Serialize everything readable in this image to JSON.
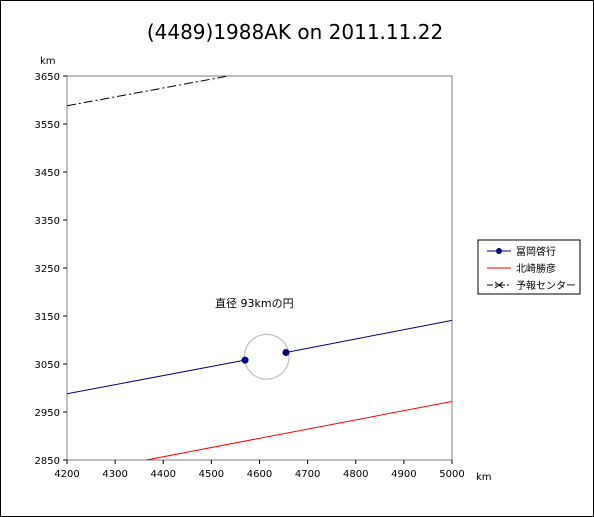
{
  "chart_data": {
    "type": "line",
    "title": "(4489)1988AK on 2011.11.22",
    "xlabel": "km",
    "ylabel": "km",
    "xlim": [
      4200,
      5000
    ],
    "ylim": [
      2850,
      3650
    ],
    "x_ticks": [
      4200,
      4300,
      4400,
      4500,
      4600,
      4700,
      4800,
      4900,
      5000
    ],
    "y_ticks": [
      2850,
      2950,
      3050,
      3150,
      3250,
      3350,
      3450,
      3550,
      3650
    ],
    "grid": false,
    "legend_position": "right",
    "series": [
      {
        "name": "冨岡啓行",
        "color": "#000080",
        "line_style": "solid",
        "marker": "circle",
        "segments": [
          [
            [
              4200,
              2988
            ],
            [
              4570,
              3058
            ]
          ],
          [
            [
              4655,
              3074
            ],
            [
              5000,
              3141
            ]
          ]
        ],
        "marker_points": [
          [
            4570,
            3058
          ],
          [
            4655,
            3074
          ]
        ]
      },
      {
        "name": "北崎勝彦",
        "color": "#ff0000",
        "line_style": "solid",
        "marker": "none",
        "segments": [
          [
            [
              4365,
              2850
            ],
            [
              5000,
              2972
            ]
          ]
        ]
      },
      {
        "name": "予報センター",
        "color": "#000000",
        "line_style": "dashdot",
        "marker": "x",
        "segments": [
          [
            [
              4200,
              3588
            ],
            [
              4535,
              3650
            ]
          ]
        ]
      }
    ],
    "circle": {
      "center": [
        4615,
        3065
      ],
      "diameter_km": 93,
      "color": "#c0c0c0"
    },
    "annotation": "直径 93kmの円"
  }
}
